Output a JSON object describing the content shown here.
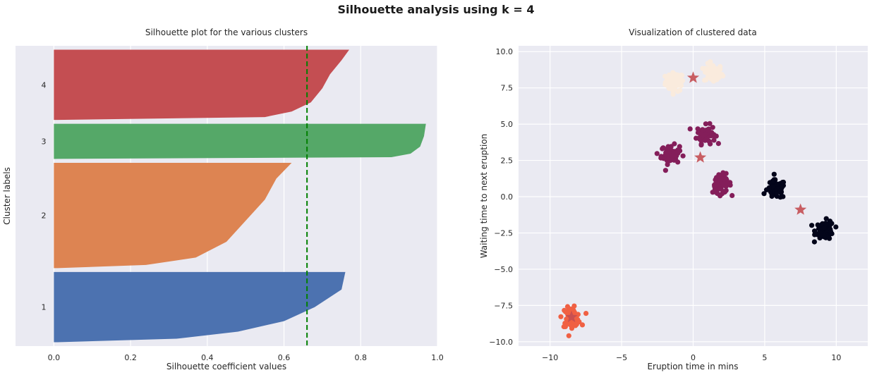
{
  "figure": {
    "suptitle": "Silhouette analysis using k = 4"
  },
  "chart_data": [
    {
      "type": "area",
      "title": "Silhouette plot for the various clusters",
      "xlabel": "Silhouette coefficient values",
      "ylabel": "Cluster labels",
      "xlim": [
        -0.1,
        1.0
      ],
      "xticks": [
        "0.0",
        "0.2",
        "0.4",
        "0.6",
        "0.8",
        "1.0"
      ],
      "xtick_values": [
        0.0,
        0.2,
        0.4,
        0.6,
        0.8,
        1.0
      ],
      "grid": true,
      "average_silhouette": 0.66,
      "clusters": [
        {
          "label": "1",
          "color": "#4c72b0",
          "size": 180,
          "max": 0.76,
          "min": 0.01,
          "profile": [
            [
              0,
              0.76
            ],
            [
              0.25,
              0.75
            ],
            [
              0.5,
              0.68
            ],
            [
              0.7,
              0.6
            ],
            [
              0.85,
              0.48
            ],
            [
              0.95,
              0.32
            ],
            [
              1.0,
              0.01
            ]
          ]
        },
        {
          "label": "2",
          "color": "#dd8452",
          "size": 270,
          "max": 0.62,
          "min": 0.01,
          "profile": [
            [
              0,
              0.62
            ],
            [
              0.15,
              0.58
            ],
            [
              0.35,
              0.55
            ],
            [
              0.55,
              0.5
            ],
            [
              0.75,
              0.45
            ],
            [
              0.9,
              0.37
            ],
            [
              0.97,
              0.24
            ],
            [
              1.0,
              0.01
            ]
          ]
        },
        {
          "label": "3",
          "color": "#55a868",
          "size": 90,
          "max": 0.97,
          "min": 0.01,
          "profile": [
            [
              0,
              0.97
            ],
            [
              0.35,
              0.965
            ],
            [
              0.65,
              0.955
            ],
            [
              0.85,
              0.93
            ],
            [
              0.95,
              0.88
            ],
            [
              1.0,
              0.01
            ]
          ]
        },
        {
          "label": "4",
          "color": "#c44e52",
          "size": 180,
          "max": 0.77,
          "min": 0.01,
          "profile": [
            [
              0,
              0.77
            ],
            [
              0.15,
              0.75
            ],
            [
              0.35,
              0.72
            ],
            [
              0.55,
              0.7
            ],
            [
              0.75,
              0.67
            ],
            [
              0.88,
              0.62
            ],
            [
              0.96,
              0.55
            ],
            [
              1.0,
              0.01
            ]
          ]
        }
      ]
    },
    {
      "type": "scatter",
      "title": "Visualization of clustered data",
      "xlabel": "Eruption time in mins",
      "ylabel": "Waiting time to next eruption",
      "xlim": [
        -12.2,
        12.2
      ],
      "ylim": [
        -10.3,
        10.4
      ],
      "xticks": [
        "−10",
        "−5",
        "0",
        "5",
        "10"
      ],
      "xtick_values": [
        -10,
        -5,
        0,
        5,
        10
      ],
      "yticks": [
        "−10.0",
        "−7.5",
        "−5.0",
        "−2.5",
        "0.0",
        "2.5",
        "5.0",
        "7.5",
        "10.0"
      ],
      "ytick_values": [
        -10,
        -7.5,
        -5,
        -2.5,
        0,
        2.5,
        5,
        7.5,
        10
      ],
      "grid": true,
      "groups": [
        {
          "color": "#faebdd",
          "blobs": [
            [
              -1.3,
              7.9
            ],
            [
              1.4,
              8.5
            ]
          ]
        },
        {
          "color": "#841e5a",
          "blobs": [
            [
              0.9,
              4.3
            ],
            [
              -1.6,
              2.9
            ],
            [
              2.0,
              0.9
            ]
          ]
        },
        {
          "color": "#03051a",
          "blobs": [
            [
              5.8,
              0.5
            ],
            [
              9.2,
              -2.3
            ]
          ]
        },
        {
          "color": "#f06043",
          "blobs": [
            [
              -8.5,
              -8.3
            ]
          ]
        }
      ],
      "centers": {
        "color": "#c44e52",
        "points": [
          [
            0.0,
            8.2
          ],
          [
            0.5,
            2.7
          ],
          [
            7.5,
            -0.9
          ],
          [
            -8.5,
            -8.3
          ]
        ]
      }
    }
  ]
}
